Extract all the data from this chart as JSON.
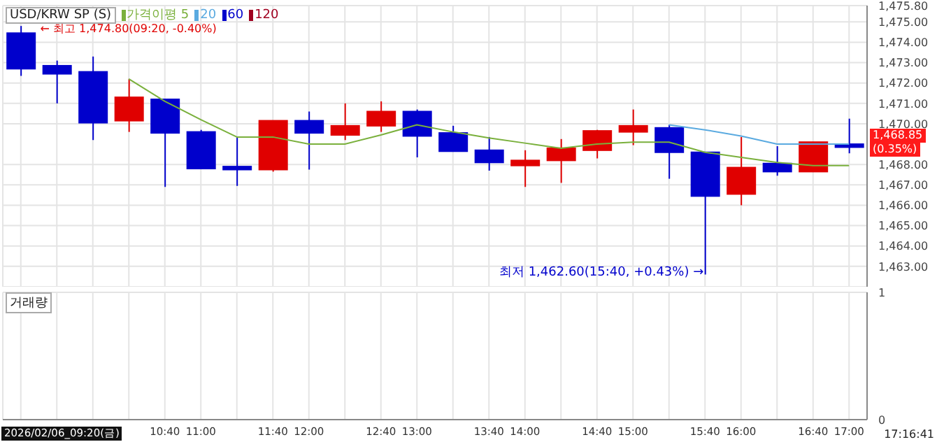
{
  "chart_data": [
    {
      "type": "candlestick",
      "title": "USD/KRW SP (S)",
      "categories": [
        null,
        null,
        null,
        null,
        "10:40",
        "11:00",
        null,
        "11:40",
        "12:00",
        null,
        "12:40",
        "13:00",
        null,
        "13:40",
        "14:00",
        null,
        "14:40",
        "15:00",
        null,
        "15:40",
        "16:00",
        null,
        "16:40",
        "17:00"
      ],
      "ohlc": [
        [
          1474.45,
          1474.8,
          1472.35,
          1472.7
        ],
        [
          1472.85,
          1473.1,
          1471.0,
          1472.45
        ],
        [
          1472.55,
          1473.3,
          1469.2,
          1470.05
        ],
        [
          1470.15,
          1472.2,
          1469.6,
          1471.3
        ],
        [
          1471.2,
          1471.2,
          1466.9,
          1469.55
        ],
        [
          1469.6,
          1469.7,
          1467.8,
          1467.8
        ],
        [
          1467.9,
          1469.35,
          1466.95,
          1467.75
        ],
        [
          1467.75,
          1470.15,
          1467.65,
          1470.15
        ],
        [
          1470.15,
          1470.6,
          1467.75,
          1469.55
        ],
        [
          1469.45,
          1471.0,
          1469.2,
          1469.9
        ],
        [
          1469.9,
          1471.1,
          1469.6,
          1470.6
        ],
        [
          1470.6,
          1470.7,
          1468.35,
          1469.4
        ],
        [
          1469.55,
          1469.9,
          1468.65,
          1468.65
        ],
        [
          1468.7,
          1469.35,
          1467.7,
          1468.1
        ],
        [
          1467.95,
          1468.7,
          1466.9,
          1468.2
        ],
        [
          1468.2,
          1469.25,
          1467.1,
          1468.8
        ],
        [
          1468.7,
          1469.7,
          1468.3,
          1469.65
        ],
        [
          1469.6,
          1470.7,
          1468.95,
          1469.9
        ],
        [
          1469.8,
          1469.95,
          1467.3,
          1468.6
        ],
        [
          1468.6,
          1468.6,
          1462.6,
          1466.45
        ],
        [
          1466.55,
          1469.35,
          1466.0,
          1467.85
        ],
        [
          1468.05,
          1468.9,
          1467.45,
          1467.65
        ],
        [
          1467.65,
          1469.1,
          1467.65,
          1469.1
        ],
        [
          1469.0,
          1470.25,
          1468.55,
          1468.85
        ]
      ],
      "colors": [
        "#0000cc",
        "#0000cc",
        "#0000cc",
        "#e00000",
        "#0000cc",
        "#0000cc",
        "#0000cc",
        "#e00000",
        "#0000cc",
        "#e00000",
        "#e00000",
        "#0000cc",
        "#0000cc",
        "#0000cc",
        "#e00000",
        "#e00000",
        "#e00000",
        "#e00000",
        "#0000cc",
        "#0000cc",
        "#e00000",
        "#0000cc",
        "#e00000",
        "#0000cc"
      ],
      "series": [
        {
          "name": "가격이평 5",
          "type": "line",
          "color": "#7ab03c",
          "values": [
            null,
            null,
            null,
            1472.2,
            1471.1,
            1470.2,
            1469.35,
            1469.35,
            1469.0,
            1469.0,
            1469.45,
            1469.95,
            1469.6,
            1469.3,
            1469.05,
            1468.8,
            1469.0,
            1469.1,
            1469.1,
            1468.6,
            1468.35,
            1468.1,
            1467.95,
            1467.95
          ]
        },
        {
          "name": "20",
          "type": "line",
          "color": "#5aaae0",
          "values": [
            null,
            null,
            null,
            null,
            null,
            null,
            null,
            null,
            null,
            null,
            null,
            null,
            null,
            null,
            null,
            null,
            null,
            null,
            1469.95,
            1469.7,
            1469.4,
            1469.0,
            1469.0,
            1469.0
          ]
        },
        {
          "name": "60",
          "type": "line",
          "color": "#0000cc",
          "values": [
            null,
            null,
            null,
            null,
            null,
            null,
            null,
            null,
            null,
            null,
            null,
            null,
            null,
            null,
            null,
            null,
            null,
            null,
            null,
            null,
            null,
            null,
            null,
            null
          ]
        },
        {
          "name": "120",
          "type": "line",
          "color": "#a00020",
          "values": [
            null,
            null,
            null,
            null,
            null,
            null,
            null,
            null,
            null,
            null,
            null,
            null,
            null,
            null,
            null,
            null,
            null,
            null,
            null,
            null,
            null,
            null,
            null,
            null
          ]
        }
      ],
      "ylim": [
        1462,
        1475.8
      ],
      "yticks": [
        {
          "value": 1463,
          "label": "1,463.00"
        },
        {
          "value": 1464,
          "label": "1,464.00"
        },
        {
          "value": 1465,
          "label": "1,465.00"
        },
        {
          "value": 1466,
          "label": "1,466.00"
        },
        {
          "value": 1467,
          "label": "1,467.00"
        },
        {
          "value": 1468,
          "label": "1,468.00"
        },
        {
          "value": 1470,
          "label": "1,470.00"
        },
        {
          "value": 1471,
          "label": "1,471.00"
        },
        {
          "value": 1472,
          "label": "1,472.00"
        },
        {
          "value": 1473,
          "label": "1,473.00"
        },
        {
          "value": 1474,
          "label": "1,474.00"
        },
        {
          "value": 1475,
          "label": "1,475.00"
        },
        {
          "value": 1475.8,
          "label": "1,475.80"
        }
      ],
      "annotations": [
        "← 최고 1,474.80(09:20, -0.40%)",
        {
          "text": "최저 1,462.60(15:40, +0.43%) →",
          "x": "15:40",
          "y": 1462.6
        },
        "1,468.85",
        "(0.35%)"
      ],
      "grid": true,
      "legend": "top left",
      "marker": "none",
      "tick_labels": "y"
    },
    {
      "type": "bar",
      "title": "거래량",
      "categories": [
        null,
        null,
        null,
        null,
        "10:40",
        "11:00",
        null,
        "11:40",
        "12:00",
        null,
        "12:40",
        "13:00",
        null,
        "13:40",
        "14:00",
        null,
        "14:40",
        "15:00",
        null,
        "15:40",
        "16:00",
        null,
        "16:40",
        "17:00"
      ],
      "values": [
        0,
        0,
        0,
        0,
        0,
        0,
        0,
        0,
        0,
        0,
        0,
        0,
        0,
        0,
        0,
        0,
        0,
        0,
        0,
        0,
        0,
        0,
        0,
        0
      ],
      "ylim": [
        0,
        1
      ],
      "yticks": [
        0,
        1
      ],
      "grid": true,
      "annotations": [
        "2026/02/06_09:20(금)",
        "17:16:41"
      ]
    }
  ]
}
